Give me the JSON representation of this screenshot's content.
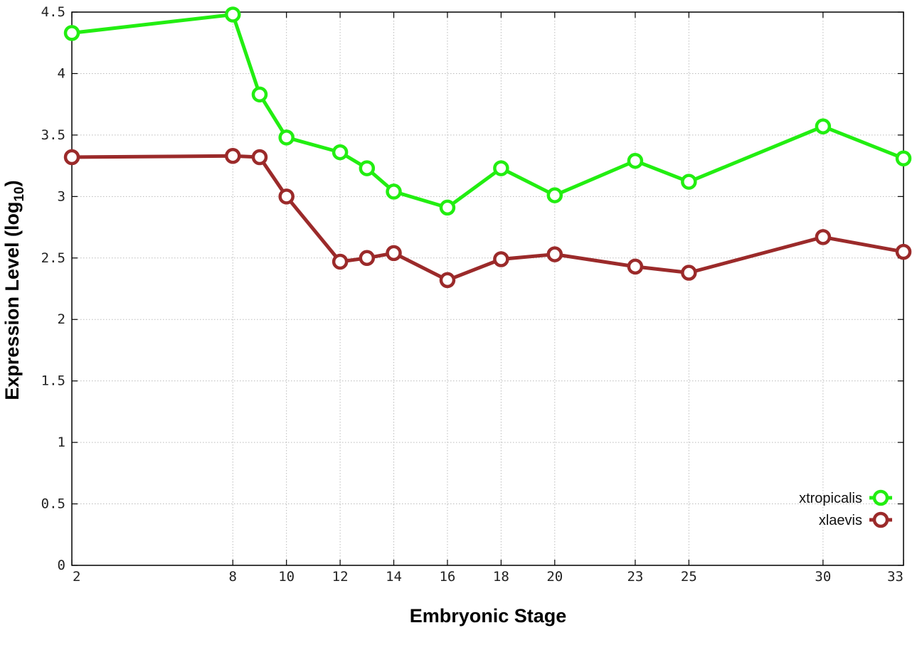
{
  "chart_data": {
    "type": "line",
    "xlabel": "Embryonic Stage",
    "ylabel": "Expression Level (log",
    "ylabel_subscript": "10",
    "ylabel_close": ")",
    "x_ticks": [
      2,
      8,
      10,
      12,
      14,
      16,
      18,
      20,
      23,
      25,
      30,
      33
    ],
    "y_ticks": [
      "0",
      "0.5",
      "1",
      "1.5",
      "2",
      "2.5",
      "3",
      "3.5",
      "4",
      "4.5"
    ],
    "xlim": [
      2,
      33
    ],
    "ylim": [
      0,
      4.5
    ],
    "grid": true,
    "legend_position": "bottom-right",
    "x": [
      2,
      8,
      9,
      10,
      12,
      13,
      14,
      16,
      18,
      20,
      23,
      25,
      30,
      33
    ],
    "series": [
      {
        "name": "xtropicalis",
        "color": "#22ee11",
        "values": [
          4.33,
          4.48,
          3.83,
          3.48,
          3.36,
          3.23,
          3.04,
          2.91,
          3.23,
          3.01,
          3.29,
          3.12,
          3.57,
          3.31
        ]
      },
      {
        "name": "xlaevis",
        "color": "#9b2a2a",
        "values": [
          3.32,
          3.33,
          3.32,
          3.0,
          2.47,
          2.5,
          2.54,
          2.32,
          2.49,
          2.53,
          2.43,
          2.38,
          2.67,
          2.55
        ]
      }
    ]
  }
}
